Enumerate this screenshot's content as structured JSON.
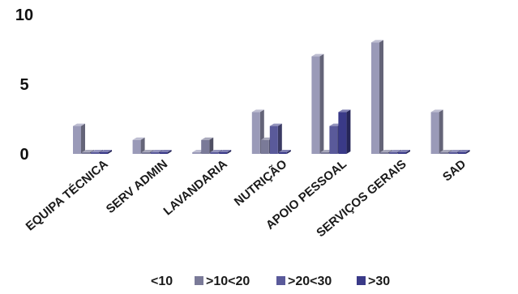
{
  "chart_data": {
    "type": "bar",
    "style": "3d-clustered",
    "title": "",
    "xlabel": "",
    "ylabel": "",
    "ylim": [
      0,
      10
    ],
    "yticks": [
      "0",
      "5",
      "10"
    ],
    "grid": false,
    "legend_position": "bottom",
    "categories": [
      "EQUIPA TÉCNICA",
      "SERV ADMIN",
      "LAVANDARIA",
      "NUTRIÇÃO",
      "APOIO PESSOAL",
      "SERVIÇOS GERAIS",
      "SAD"
    ],
    "series": [
      {
        "name": "<10",
        "color": "#9a9ab8",
        "values": [
          2,
          1,
          0,
          3,
          7,
          8,
          3
        ]
      },
      {
        "name": ">10<20",
        "color": "#7a7a98",
        "values": [
          0,
          0,
          1,
          1,
          0,
          0,
          0
        ]
      },
      {
        "name": ">20<30",
        "color": "#5a5a9a",
        "values": [
          0,
          0,
          0,
          2,
          2,
          0,
          0
        ]
      },
      {
        "name": ">30",
        "color": "#3a3a88",
        "values": [
          0,
          0,
          0,
          0,
          3,
          0,
          0
        ]
      }
    ]
  }
}
